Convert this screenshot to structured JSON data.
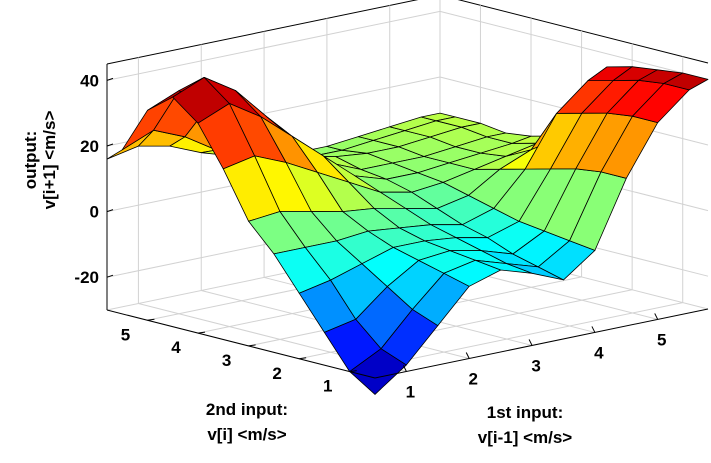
{
  "chart_data": {
    "type": "surface",
    "title": "",
    "zlabel_line1": "output:",
    "zlabel_line2": "v[i+1] <m/s>",
    "xlabel_line1": "1st input:",
    "xlabel_line2": "v[i-1] <m/s>",
    "ylabel_line1": "2nd input:",
    "ylabel_line2": "v[i] <m/s>",
    "x_tick_labels": [
      "1",
      "2",
      "3",
      "4",
      "5"
    ],
    "y_tick_labels": [
      "1",
      "2",
      "3",
      "4",
      "5"
    ],
    "z_tick_labels": [
      "-20",
      "0",
      "20",
      "40"
    ],
    "x_ticks": [
      1,
      2,
      3,
      4,
      5
    ],
    "y_ticks": [
      1,
      2,
      3,
      4,
      5
    ],
    "z_ticks": [
      -20,
      0,
      20,
      40
    ],
    "xlim": [
      0.5,
      5.8
    ],
    "ylim": [
      0.5,
      5.8
    ],
    "zlim": [
      -30,
      45
    ],
    "grid": true,
    "colormap": "jet",
    "x": [
      0.5,
      1.0,
      1.5,
      2.0,
      2.5,
      3.0,
      3.5,
      4.0,
      4.5,
      5.0,
      5.5,
      5.8
    ],
    "y": [
      0.5,
      1.0,
      1.5,
      2.0,
      2.5,
      3.0,
      3.5,
      4.0,
      4.5,
      5.0,
      5.5,
      5.8
    ],
    "z_rows_by_y": [
      [
        -35,
        -28,
        -18,
        -8,
        -5,
        -8,
        -12,
        -5,
        15,
        30,
        38,
        40
      ],
      [
        -30,
        -25,
        -15,
        -6,
        -4,
        -7,
        -10,
        -4,
        15,
        30,
        38,
        40
      ],
      [
        -20,
        -18,
        -10,
        -4,
        -3,
        -5,
        -8,
        -3,
        14,
        29,
        37,
        39
      ],
      [
        -10,
        -8,
        -5,
        -2,
        -2,
        -3,
        -5,
        -2,
        12,
        27,
        35,
        38
      ],
      [
        0,
        0,
        0,
        1,
        0,
        -1,
        -3,
        0,
        10,
        25,
        33,
        36
      ],
      [
        8,
        9,
        7,
        5,
        4,
        2,
        0,
        2,
        8,
        12,
        14,
        15
      ],
      [
        22,
        24,
        20,
        15,
        10,
        5,
        3,
        4,
        6,
        8,
        10,
        11
      ],
      [
        34,
        38,
        32,
        24,
        16,
        8,
        5,
        5,
        6,
        7,
        8,
        9
      ],
      [
        40,
        44,
        38,
        28,
        18,
        10,
        6,
        6,
        6,
        7,
        8,
        8
      ],
      [
        34,
        38,
        32,
        24,
        15,
        10,
        8,
        7,
        7,
        8,
        9,
        9
      ],
      [
        20,
        24,
        20,
        14,
        10,
        7,
        6,
        6,
        7,
        8,
        9,
        9
      ],
      [
        16,
        18,
        16,
        12,
        9,
        7,
        6,
        6,
        7,
        8,
        9,
        9
      ]
    ]
  }
}
